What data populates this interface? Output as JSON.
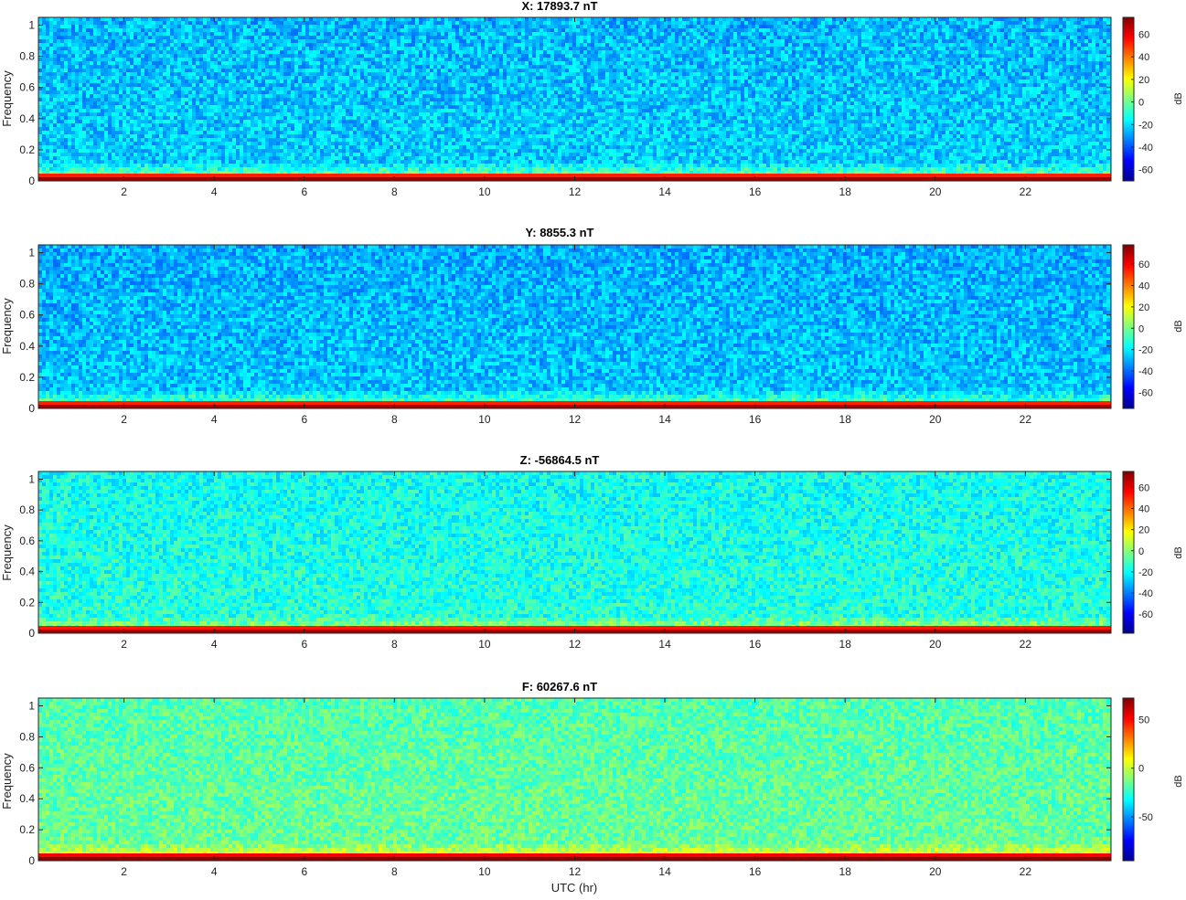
{
  "chart_data": [
    {
      "type": "heatmap",
      "title": "X: 17893.7 nT",
      "ylabel": "Frequency",
      "xlabel": "",
      "xlim": [
        0.1,
        23.9
      ],
      "ylim": [
        0,
        1.05
      ],
      "x_ticks": [
        2,
        4,
        6,
        8,
        10,
        12,
        14,
        16,
        18,
        20,
        22
      ],
      "y_ticks": [
        0,
        0.2,
        0.4,
        0.6,
        0.8,
        1
      ],
      "colorbar": {
        "label": "dB",
        "range": [
          -70,
          75
        ],
        "ticks": [
          -60,
          -40,
          -20,
          0,
          20,
          40,
          60
        ]
      },
      "background_level_db": -22,
      "low_freq_peak_db": 70,
      "colormap": "jet"
    },
    {
      "type": "heatmap",
      "title": "Y: 8855.3 nT",
      "ylabel": "Frequency",
      "xlabel": "",
      "xlim": [
        0.1,
        23.9
      ],
      "ylim": [
        0,
        1.05
      ],
      "x_ticks": [
        2,
        4,
        6,
        8,
        10,
        12,
        14,
        16,
        18,
        20,
        22
      ],
      "y_ticks": [
        0,
        0.2,
        0.4,
        0.6,
        0.8,
        1
      ],
      "colorbar": {
        "label": "dB",
        "range": [
          -75,
          78
        ],
        "ticks": [
          -60,
          -40,
          -20,
          0,
          20,
          40,
          60
        ]
      },
      "background_level_db": -26,
      "low_freq_peak_db": 72,
      "colormap": "jet"
    },
    {
      "type": "heatmap",
      "title": "Z: -56864.5 nT",
      "ylabel": "Frequency",
      "xlabel": "",
      "xlim": [
        0.1,
        23.9
      ],
      "ylim": [
        0,
        1.05
      ],
      "x_ticks": [
        2,
        4,
        6,
        8,
        10,
        12,
        14,
        16,
        18,
        20,
        22
      ],
      "y_ticks": [
        0,
        0.2,
        0.4,
        0.6,
        0.8,
        1
      ],
      "colorbar": {
        "label": "dB",
        "range": [
          -78,
          75
        ],
        "ticks": [
          -60,
          -40,
          -20,
          0,
          20,
          40,
          60
        ]
      },
      "background_level_db": -15,
      "low_freq_peak_db": 70,
      "colormap": "jet"
    },
    {
      "type": "heatmap",
      "title": "F: 60267.6 nT",
      "ylabel": "Frequency",
      "xlabel": "UTC (hr)",
      "xlim": [
        0.1,
        23.9
      ],
      "ylim": [
        0,
        1.05
      ],
      "x_ticks": [
        2,
        4,
        6,
        8,
        10,
        12,
        14,
        16,
        18,
        20,
        22
      ],
      "y_ticks": [
        0,
        0.2,
        0.4,
        0.6,
        0.8,
        1
      ],
      "colorbar": {
        "label": "dB",
        "range": [
          -95,
          72
        ],
        "ticks": [
          -50,
          0,
          50
        ]
      },
      "background_level_db": -15,
      "low_freq_peak_db": 70,
      "colormap": "jet"
    }
  ]
}
